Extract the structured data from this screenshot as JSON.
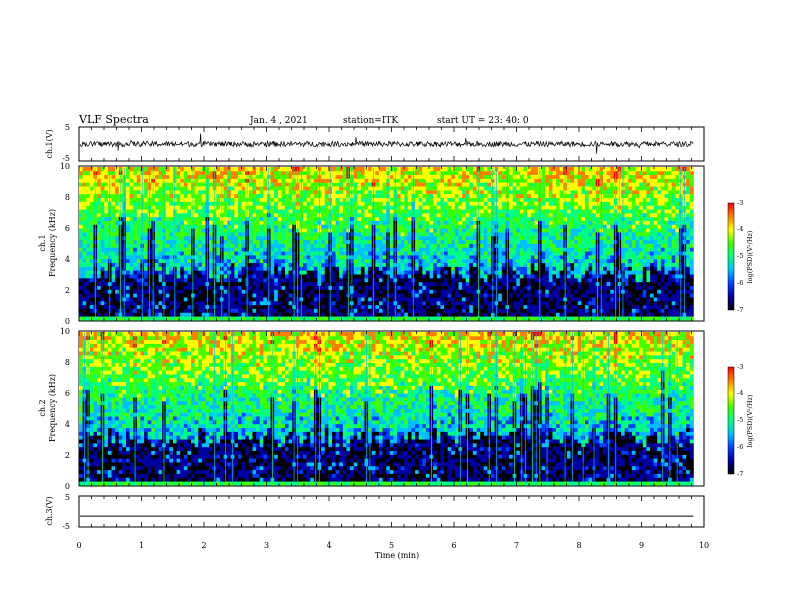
{
  "header": {
    "title": "VLF Spectra",
    "date": "Jan. 4 , 2021",
    "station": "station=ITK",
    "start": "start UT = 23: 40: 0"
  },
  "chart_data": [
    {
      "type": "line",
      "name": "ch1-waveform",
      "ylabel": "ch.1(V)",
      "ylim": [
        -5,
        5
      ],
      "yticks": [
        "5",
        "-5"
      ],
      "xlim": [
        0,
        10
      ],
      "baseline": 0,
      "noise_amplitude": 0.8
    },
    {
      "type": "heatmap",
      "name": "ch1-spectrogram",
      "ylabel_line1": "ch.1",
      "ylabel_line2": "Frequency (kHz)",
      "ylim": [
        0,
        10
      ],
      "yticks": [
        "0",
        "2",
        "4",
        "6",
        "8",
        "10"
      ],
      "xlim": [
        0,
        9.83
      ],
      "colorbar": {
        "label": "log(PSD)(V²/Hz)",
        "range": [
          -7,
          -3
        ],
        "ticks": [
          "-3",
          "-4",
          "-5",
          "-6",
          "-7"
        ]
      }
    },
    {
      "type": "heatmap",
      "name": "ch2-spectrogram",
      "ylabel_line1": "ch.2",
      "ylabel_line2": "Frequency (kHz)",
      "ylim": [
        0,
        10
      ],
      "yticks": [
        "0",
        "2",
        "4",
        "6",
        "8",
        "10"
      ],
      "xlim": [
        0,
        9.83
      ],
      "colorbar": {
        "label": "log(PSD)(V²/Hz)",
        "range": [
          -7,
          -3
        ],
        "ticks": [
          "-3",
          "-4",
          "-5",
          "-6",
          "-7"
        ]
      }
    },
    {
      "type": "line",
      "name": "ch3-waveform",
      "ylabel": "ch.3(V)",
      "ylim": [
        -5,
        5
      ],
      "yticks": [
        "5",
        "-5"
      ],
      "xlim": [
        0,
        10
      ],
      "baseline": -1.5
    }
  ],
  "xaxis": {
    "label": "Time (min)",
    "range": [
      0,
      10
    ],
    "ticks": [
      "0",
      "1",
      "2",
      "3",
      "4",
      "5",
      "6",
      "7",
      "8",
      "9",
      "10"
    ]
  },
  "colors": {
    "colormap": [
      "#000000",
      "#0000a0",
      "#0040ff",
      "#00c0ff",
      "#00ff80",
      "#40ff00",
      "#ffff00",
      "#ff8000",
      "#ff0000"
    ]
  }
}
